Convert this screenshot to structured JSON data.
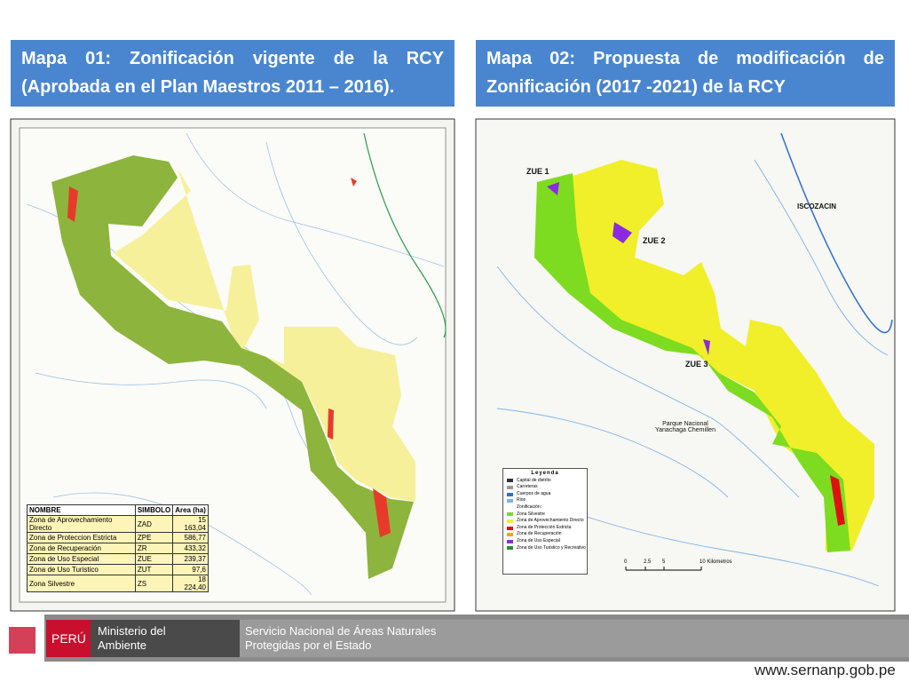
{
  "slide": {
    "left": {
      "title": "Mapa 01: Zonificación vigente de la RCY (Aprobada en el Plan Maestros 2011 – 2016).",
      "table": {
        "header": [
          "NOMBRE",
          "SIMBOLO",
          "Area (ha)"
        ],
        "rows": [
          [
            "Zona de Aprovechamiento Directo",
            "ZAD",
            "15 163,04"
          ],
          [
            "Zona de Proteccion Estricta",
            "ZPE",
            "586,77"
          ],
          [
            "Zona de Recuperación",
            "ZR",
            "433,32"
          ],
          [
            "Zona de Uso Especial",
            "ZUE",
            "239,37"
          ],
          [
            "Zona de Uso Turistico",
            "ZUT",
            "97,6"
          ],
          [
            "Zona Silvestre",
            "ZS",
            "18 224,40"
          ]
        ]
      }
    },
    "right": {
      "title": "Mapa 02: Propuesta de modificación de Zonificación (2017 -2021) de la RCY",
      "labels": [
        "ZUE 1",
        "ZUE 2",
        "ZUE 3",
        "ISCOZACIN",
        "Parque Nacional Yanachaga Chemillen"
      ],
      "legend": {
        "title": "Leyenda",
        "items": [
          {
            "label": "Capital de distrito",
            "color": "#333333"
          },
          {
            "label": "Carreteras",
            "color": "#999999"
          },
          {
            "label": "Cuerpos de agua",
            "color": "#2f6fd0"
          },
          {
            "label": "Rios",
            "color": "#7fb3e8"
          },
          {
            "label": "Zonificación:",
            "color": null
          },
          {
            "label": "Zona Silvestre",
            "color": "#7ddc1f"
          },
          {
            "label": "Zona de Aprovechamiento Directo",
            "color": "#f0ef2a"
          },
          {
            "label": "Zona de Protección Estricta",
            "color": "#e01010"
          },
          {
            "label": "Zona de Recuperación",
            "color": "#f5a020"
          },
          {
            "label": "Zona de Uso Especial",
            "color": "#8a2be2"
          },
          {
            "label": "Zona de Uso Turistico y Recreativo",
            "color": "#2e8b2e"
          }
        ]
      },
      "scale": [
        "0",
        "2.5",
        "5",
        "10 Kilometros"
      ]
    },
    "footer": {
      "country": "PERÚ",
      "ministry": "Ministerio del Ambiente",
      "agency": "Servicio Nacional de Áreas Naturales Protegidas por el Estado",
      "url": "www.sernanp.gob.pe"
    }
  }
}
